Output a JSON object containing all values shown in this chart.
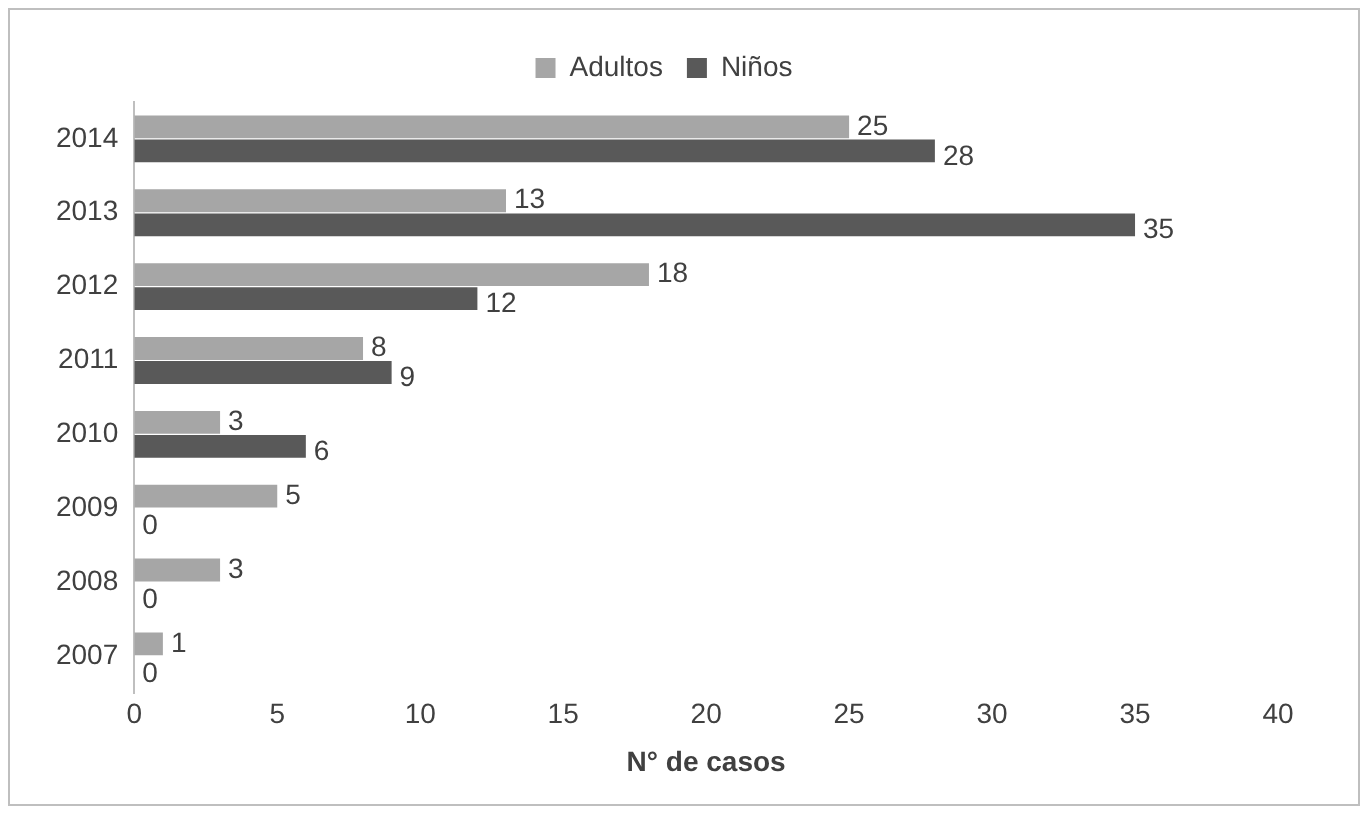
{
  "chart_data": {
    "type": "bar",
    "orientation": "horizontal",
    "categories": [
      "2014",
      "2013",
      "2012",
      "2011",
      "2010",
      "2009",
      "2008",
      "2007"
    ],
    "series": [
      {
        "name": "Adultos",
        "color": "#a6a6a6",
        "values": [
          25,
          13,
          18,
          8,
          3,
          5,
          3,
          1
        ]
      },
      {
        "name": "Niños",
        "color": "#595959",
        "values": [
          28,
          35,
          12,
          9,
          6,
          0,
          0,
          0
        ]
      }
    ],
    "xlabel": "N° de casos",
    "xlim": [
      0,
      40
    ],
    "xticks": [
      0,
      5,
      10,
      15,
      20,
      25,
      30,
      35,
      40
    ],
    "grid": false,
    "legend": "top",
    "data_labels": true
  }
}
